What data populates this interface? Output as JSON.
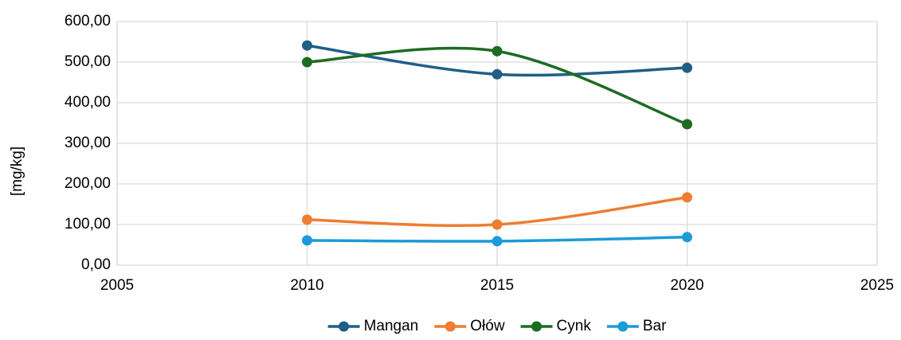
{
  "chart_data": {
    "type": "scatter",
    "y_label": "[mg/kg]",
    "x": [
      2010,
      2015,
      2020
    ],
    "series": [
      {
        "name": "Mangan",
        "color": "#1f5f86",
        "values": [
          541,
          470,
          486
        ]
      },
      {
        "name": "Ołów",
        "color": "#ed7d31",
        "values": [
          112,
          100,
          167
        ]
      },
      {
        "name": "Cynk",
        "color": "#1e6b24",
        "values": [
          500,
          527,
          347
        ]
      },
      {
        "name": "Bar",
        "color": "#1b9bd7",
        "values": [
          61,
          59,
          69
        ]
      }
    ],
    "xlim": [
      2005,
      2025
    ],
    "xticks": [
      2005,
      2010,
      2015,
      2020,
      2025
    ],
    "ylim": [
      0,
      600
    ],
    "yticks": [
      {
        "value": 0,
        "label": "0,00"
      },
      {
        "value": 100,
        "label": "100,00"
      },
      {
        "value": 200,
        "label": "200,00"
      },
      {
        "value": 300,
        "label": "300,00"
      },
      {
        "value": 400,
        "label": "400,00"
      },
      {
        "value": 500,
        "label": "500,00"
      },
      {
        "value": 600,
        "label": "600,00"
      }
    ],
    "grid": true,
    "smooth": true,
    "legend": "bottom"
  }
}
